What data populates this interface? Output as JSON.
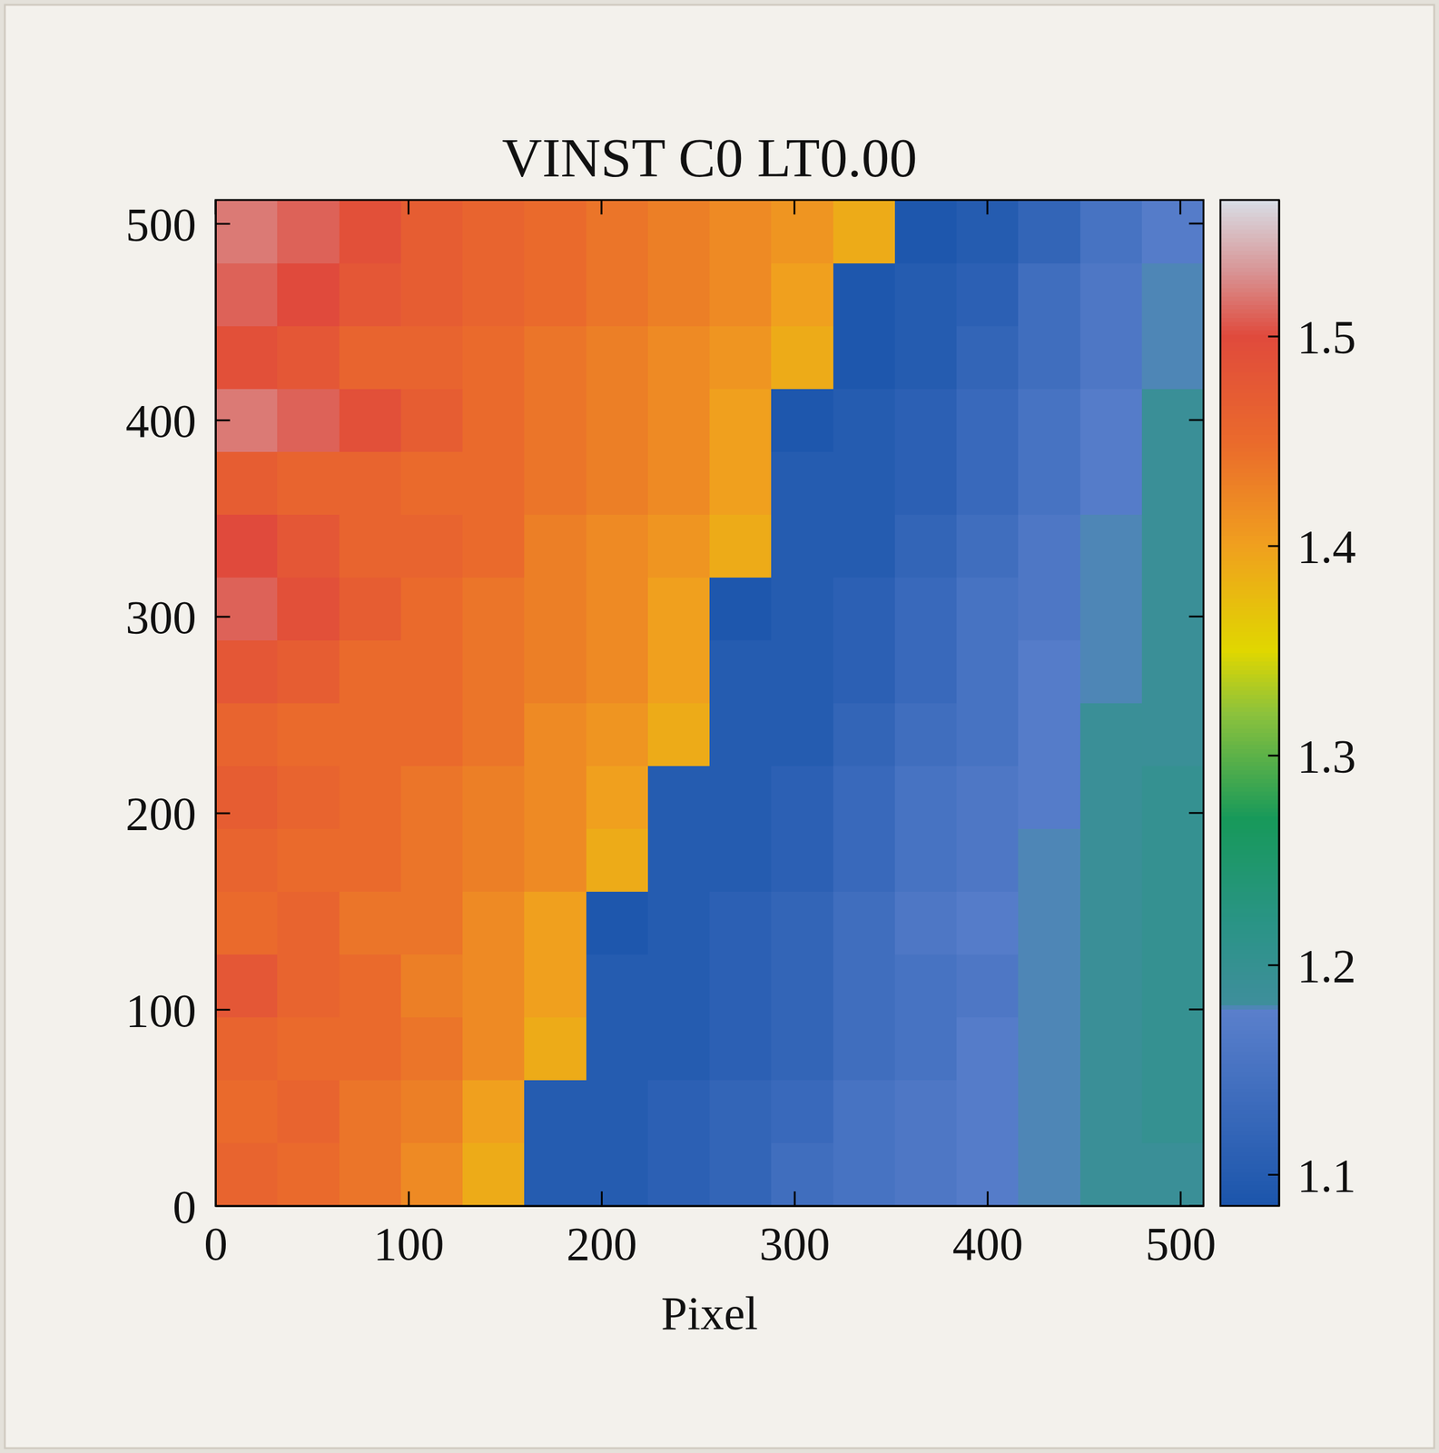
{
  "chart_data": {
    "type": "heatmap",
    "title": "VINST C0 LT0.00",
    "xlabel": "Pixel",
    "xlim": [
      0,
      512
    ],
    "ylim": [
      0,
      512
    ],
    "xticks": [
      0,
      100,
      200,
      300,
      400,
      500
    ],
    "yticks": [
      0,
      100,
      200,
      300,
      400,
      500
    ],
    "x_edges": [
      0,
      32,
      64,
      96,
      128,
      160,
      192,
      224,
      256,
      288,
      320,
      352,
      384,
      416,
      448,
      480,
      512
    ],
    "y_edges": [
      0,
      32,
      64,
      96,
      128,
      160,
      192,
      224,
      256,
      288,
      320,
      352,
      384,
      416,
      448,
      480,
      512
    ],
    "cells": [
      [
        1.46,
        1.45,
        1.44,
        1.42,
        1.39,
        1.1,
        1.1,
        1.11,
        1.12,
        1.14,
        1.15,
        1.16,
        1.17,
        1.18,
        1.19,
        1.19
      ],
      [
        1.45,
        1.46,
        1.44,
        1.43,
        1.4,
        1.1,
        1.1,
        1.11,
        1.12,
        1.13,
        1.15,
        1.16,
        1.17,
        1.18,
        1.19,
        1.2
      ],
      [
        1.46,
        1.45,
        1.45,
        1.44,
        1.42,
        1.39,
        1.1,
        1.1,
        1.11,
        1.12,
        1.14,
        1.15,
        1.17,
        1.18,
        1.19,
        1.2
      ],
      [
        1.48,
        1.46,
        1.45,
        1.43,
        1.42,
        1.4,
        1.1,
        1.1,
        1.11,
        1.12,
        1.14,
        1.15,
        1.16,
        1.18,
        1.19,
        1.2
      ],
      [
        1.45,
        1.46,
        1.44,
        1.44,
        1.42,
        1.4,
        1.09,
        1.1,
        1.11,
        1.12,
        1.14,
        1.16,
        1.17,
        1.18,
        1.19,
        1.2
      ],
      [
        1.46,
        1.45,
        1.45,
        1.44,
        1.43,
        1.42,
        1.39,
        1.1,
        1.1,
        1.11,
        1.13,
        1.15,
        1.16,
        1.18,
        1.19,
        1.2
      ],
      [
        1.47,
        1.46,
        1.45,
        1.44,
        1.43,
        1.42,
        1.4,
        1.1,
        1.1,
        1.11,
        1.13,
        1.15,
        1.16,
        1.17,
        1.19,
        1.2
      ],
      [
        1.46,
        1.45,
        1.45,
        1.45,
        1.44,
        1.42,
        1.41,
        1.39,
        1.1,
        1.1,
        1.12,
        1.14,
        1.15,
        1.17,
        1.19,
        1.19
      ],
      [
        1.48,
        1.47,
        1.45,
        1.45,
        1.44,
        1.43,
        1.42,
        1.4,
        1.1,
        1.1,
        1.11,
        1.13,
        1.15,
        1.17,
        1.18,
        1.19
      ],
      [
        1.51,
        1.49,
        1.47,
        1.45,
        1.44,
        1.43,
        1.42,
        1.4,
        1.09,
        1.1,
        1.11,
        1.13,
        1.15,
        1.16,
        1.18,
        1.19
      ],
      [
        1.5,
        1.48,
        1.46,
        1.46,
        1.45,
        1.43,
        1.42,
        1.41,
        1.39,
        1.1,
        1.1,
        1.12,
        1.14,
        1.16,
        1.18,
        1.19
      ],
      [
        1.47,
        1.46,
        1.46,
        1.45,
        1.45,
        1.44,
        1.43,
        1.42,
        1.4,
        1.1,
        1.1,
        1.11,
        1.13,
        1.15,
        1.17,
        1.19
      ],
      [
        1.52,
        1.51,
        1.49,
        1.47,
        1.45,
        1.44,
        1.43,
        1.42,
        1.4,
        1.09,
        1.1,
        1.11,
        1.13,
        1.15,
        1.17,
        1.19
      ],
      [
        1.49,
        1.48,
        1.46,
        1.46,
        1.45,
        1.44,
        1.43,
        1.42,
        1.41,
        1.39,
        1.09,
        1.1,
        1.12,
        1.14,
        1.16,
        1.18
      ],
      [
        1.51,
        1.5,
        1.48,
        1.47,
        1.46,
        1.45,
        1.44,
        1.43,
        1.42,
        1.4,
        1.09,
        1.1,
        1.11,
        1.14,
        1.16,
        1.18
      ],
      [
        1.52,
        1.51,
        1.49,
        1.47,
        1.46,
        1.45,
        1.44,
        1.43,
        1.42,
        1.41,
        1.39,
        1.09,
        1.1,
        1.12,
        1.15,
        1.17
      ]
    ],
    "colorbar": {
      "range": [
        1.085,
        1.565
      ],
      "ticks": [
        1.1,
        1.2,
        1.3,
        1.4,
        1.5
      ]
    }
  }
}
